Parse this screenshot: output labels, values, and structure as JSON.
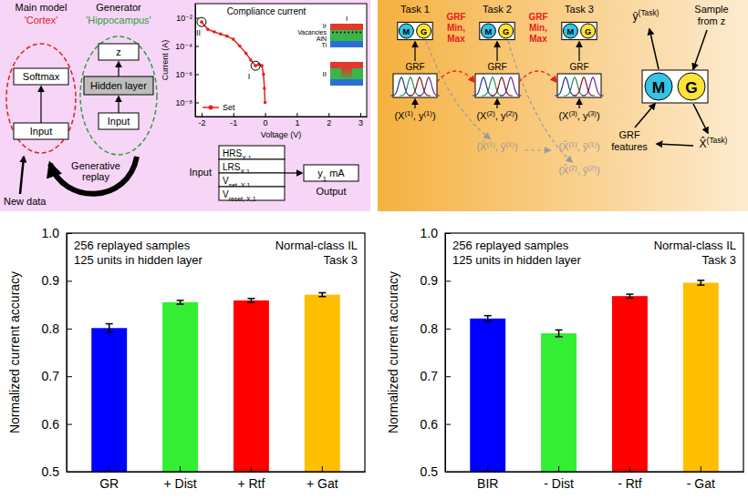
{
  "chart_data": [
    {
      "type": "bar",
      "categories": [
        "GR",
        "+ Dist",
        "+ Rtf",
        "+ Gat"
      ],
      "values": [
        0.801,
        0.855,
        0.859,
        0.871
      ],
      "errors": [
        0.009,
        0.004,
        0.004,
        0.004
      ],
      "colors": [
        "#0000ff",
        "#33ee33",
        "#ff0000",
        "#ffbf00"
      ],
      "ylabel": "Normalized current accuracy",
      "ylim": [
        0.5,
        1.0
      ],
      "yticks": [
        0.5,
        0.6,
        0.7,
        0.8,
        0.9,
        {
          "value": 1,
          "label": "1.0"
        }
      ],
      "annotations": [
        "256 replayed samples",
        "125 units in hidden layer",
        "Normal-class IL",
        "Task 3"
      ]
    },
    {
      "type": "bar",
      "categories": [
        "BIR",
        "- Dist",
        "- Rtf",
        "- Gat"
      ],
      "values": [
        0.821,
        0.79,
        0.868,
        0.896
      ],
      "errors": [
        0.006,
        0.007,
        0.004,
        0.005
      ],
      "colors": [
        "#0000ff",
        "#33ee33",
        "#ff0000",
        "#ffbf00"
      ],
      "ylabel": "Normalized current accuracy",
      "ylim": [
        0.5,
        1.0
      ],
      "yticks": [
        0.5,
        0.6,
        0.7,
        0.8,
        0.9,
        {
          "value": 1,
          "label": "1.0"
        }
      ],
      "annotations": [
        "256 replayed samples",
        "125 units in hidden layer",
        "Normal-class IL",
        "Task 3"
      ]
    },
    {
      "type": "line",
      "title": "Compliance current",
      "x": [
        0,
        -0.02,
        -0.05,
        -0.1,
        -0.2,
        -0.3,
        -0.45,
        -0.6,
        -0.8,
        -1.0,
        -1.2,
        -1.4,
        -1.6,
        -1.8,
        -2.0
      ],
      "series": [
        {
          "name": "Set",
          "color": "#e8201c",
          "marker": "circle",
          "values": [
            1e-08,
            1e-07,
            1e-06,
            4e-06,
            5e-06,
            4e-06,
            1e-05,
            3e-05,
            0.0001,
            0.0003,
            0.0005,
            0.0007,
            0.001,
            0.0015,
            0.005
          ]
        }
      ],
      "xlabel": "Voltage (V)",
      "ylabel": "Current (A)",
      "xlim": [
        -2.2,
        3.2
      ],
      "ylim": [
        1e-09,
        0.1
      ],
      "xticks": [
        -2,
        -1,
        0,
        1,
        2,
        3
      ],
      "yticks": [
        {
          "value": 1e-08,
          "label": "10⁻⁸"
        },
        {
          "value": 1e-06,
          "label": "10⁻⁶"
        },
        {
          "value": 0.0001,
          "label": "10⁻⁴"
        },
        {
          "value": 0.01,
          "label": "10⁻²"
        }
      ],
      "log": "y",
      "legend": "lower left",
      "annotations": [
        {
          "text": "II",
          "x": -2.0,
          "y": 0.005
        },
        {
          "text": "I",
          "x": -0.3,
          "y": 4e-06
        }
      ]
    }
  ],
  "diagram": {
    "cortex": {
      "title": "Main model",
      "subtitle": "'Cortex'",
      "top_box": "Softmax",
      "bottom_box": "Input"
    },
    "hippocampus": {
      "title": "Generator",
      "subtitle": "'Hippocampus'",
      "latent": "z",
      "hidden": "Hidden layer",
      "input": "Input"
    },
    "replay": [
      "Generative",
      "replay"
    ],
    "new_data": "New data",
    "device": {
      "layers": [
        "Ir",
        "Vacancies",
        "AlN",
        "Ti"
      ],
      "states": [
        "I",
        "II"
      ]
    },
    "io": {
      "input_label": "Input",
      "rows": [
        [
          {
            "t": "HRS"
          },
          {
            "t": "X,1",
            "sub": true
          }
        ],
        [
          {
            "t": "LRS"
          },
          {
            "t": "X,1",
            "sub": true
          }
        ],
        [
          {
            "t": "V"
          },
          {
            "t": "set, X,1",
            "sub": true
          }
        ],
        [
          {
            "t": "V"
          },
          {
            "t": "reset, X,1",
            "sub": true
          }
        ]
      ],
      "output": [
        {
          "t": "y"
        },
        {
          "t": "1",
          "sub": true
        },
        {
          "t": " mA"
        }
      ],
      "output_label": "Output"
    },
    "tasks": [
      {
        "title": "Task 1",
        "model": [
          "M",
          "G"
        ],
        "grf": "GRF",
        "pair": [
          {
            "t": "(X"
          },
          {
            "t": "(1)",
            "sup": true
          },
          {
            "t": ", y"
          },
          {
            "t": "(1)",
            "sup": true
          },
          {
            "t": ")"
          }
        ],
        "ghosts": []
      },
      {
        "title": "Task 2",
        "model": [
          "M",
          "G"
        ],
        "grf": "GRF",
        "pair": [
          {
            "t": "(X"
          },
          {
            "t": "(2)",
            "sup": true
          },
          {
            "t": ", y"
          },
          {
            "t": "(2)",
            "sup": true
          },
          {
            "t": ")"
          }
        ],
        "ghosts": [
          [
            {
              "t": "(X̂"
            },
            {
              "t": "(1)",
              "sup": true
            },
            {
              "t": ", ŷ"
            },
            {
              "t": "(1)",
              "sup": true
            },
            {
              "t": ")"
            }
          ]
        ]
      },
      {
        "title": "Task 3",
        "model": [
          "M",
          "G"
        ],
        "grf": "GRF",
        "pair": [
          {
            "t": "(X"
          },
          {
            "t": "(3)",
            "sup": true
          },
          {
            "t": ", y"
          },
          {
            "t": "(3)",
            "sup": true
          },
          {
            "t": ")"
          }
        ],
        "ghosts": [
          [
            {
              "t": "(X̂"
            },
            {
              "t": "(1)",
              "sup": true
            },
            {
              "t": ", ŷ"
            },
            {
              "t": "(1)",
              "sup": true
            },
            {
              "t": ")"
            }
          ],
          [
            {
              "t": "(X̂"
            },
            {
              "t": "(2)",
              "sup": true
            },
            {
              "t": ", ŷ"
            },
            {
              "t": "(2)",
              "sup": true
            },
            {
              "t": ")"
            }
          ]
        ]
      }
    ],
    "transfers": [
      [
        "GRF",
        "Min,",
        "Max"
      ],
      [
        "GRF",
        "Min,",
        "Max"
      ]
    ],
    "inference": {
      "model": [
        "M",
        "G"
      ],
      "output": [
        {
          "t": "ŷ"
        },
        {
          "t": "(Task)",
          "sup": true
        }
      ],
      "sample": [
        "Sample",
        "from z"
      ],
      "features": [
        "GRF",
        "features"
      ],
      "input": [
        {
          "t": "X̂"
        },
        {
          "t": "(Task)",
          "sup": true
        }
      ]
    }
  }
}
